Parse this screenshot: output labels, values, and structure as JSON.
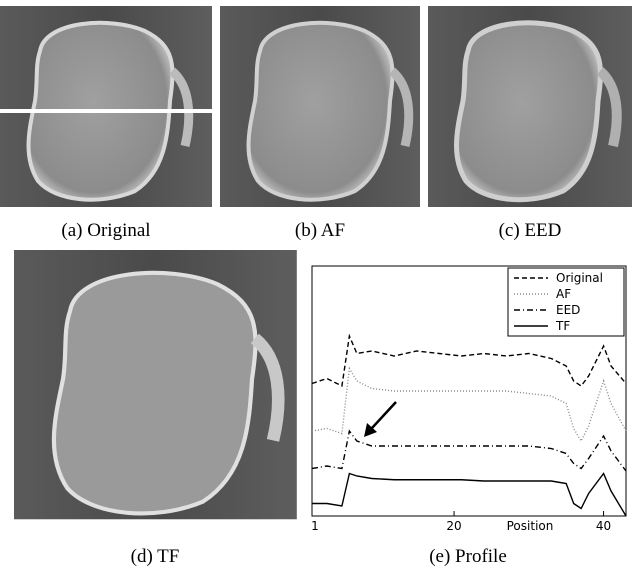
{
  "panels": [
    {
      "caption": "(a) Original"
    },
    {
      "caption": "(b) AF"
    },
    {
      "caption": "(c) EED"
    },
    {
      "caption": "(d) TF"
    },
    {
      "caption": "(e) Profile"
    }
  ],
  "chart_data": {
    "type": "line",
    "x_label": "Position",
    "x": [
      1,
      3,
      5,
      6,
      7,
      9,
      12,
      15,
      18,
      21,
      24,
      27,
      30,
      33,
      35,
      36,
      37,
      38,
      40,
      41,
      43
    ],
    "xlim": [
      1,
      43
    ],
    "xticks": [
      1,
      20,
      40
    ],
    "ylim": [
      0,
      10
    ],
    "legend": "top-right",
    "series": [
      {
        "name": "Original",
        "color": "#000000",
        "dash": "dashed",
        "values": [
          5.3,
          5.5,
          5.2,
          7.2,
          6.5,
          6.6,
          6.4,
          6.6,
          6.5,
          6.4,
          6.5,
          6.4,
          6.5,
          6.3,
          6.0,
          5.4,
          5.2,
          5.6,
          6.8,
          6.0,
          5.3
        ]
      },
      {
        "name": "AF",
        "color": "#888888",
        "dash": "dotted",
        "values": [
          3.4,
          3.5,
          3.3,
          5.9,
          5.4,
          5.1,
          5.0,
          5.0,
          5.0,
          5.0,
          5.0,
          5.0,
          4.9,
          4.8,
          4.5,
          3.5,
          3.0,
          3.6,
          5.4,
          4.5,
          3.4
        ]
      },
      {
        "name": "EED",
        "color": "#000000",
        "dash": "dashdot",
        "values": [
          1.9,
          2.0,
          1.9,
          3.4,
          3.0,
          2.8,
          2.8,
          2.8,
          2.8,
          2.8,
          2.8,
          2.8,
          2.8,
          2.7,
          2.5,
          2.1,
          1.9,
          2.3,
          3.2,
          2.6,
          1.8
        ]
      },
      {
        "name": "TF",
        "color": "#000000",
        "dash": "solid",
        "values": [
          0.5,
          0.5,
          0.4,
          1.7,
          1.6,
          1.5,
          1.45,
          1.45,
          1.45,
          1.45,
          1.4,
          1.4,
          1.4,
          1.4,
          1.3,
          0.5,
          0.3,
          0.9,
          1.7,
          1.0,
          0.0
        ]
      }
    ]
  }
}
